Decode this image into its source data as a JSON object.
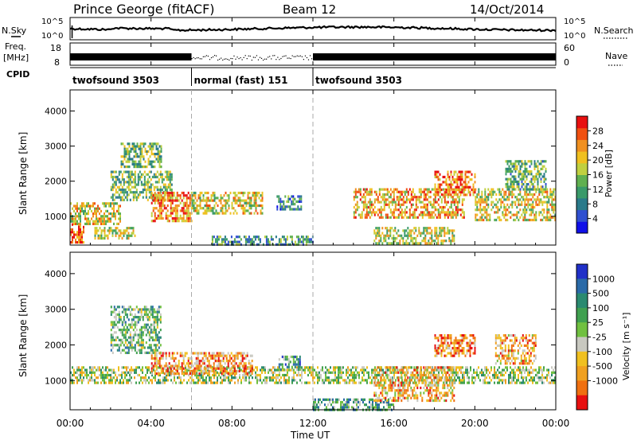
{
  "header": {
    "station": "Prince George (fitACF)",
    "beam": "Beam 12",
    "date": "14/Oct/2014"
  },
  "noise_panel": {
    "left_label": "N.Sky",
    "right_label": "N.Search",
    "left_ticks": [
      "10^5",
      "10^0"
    ],
    "right_ticks": [
      "10^5",
      "10^0"
    ]
  },
  "freq_panel": {
    "left_label_top": "Freq.",
    "left_label_bottom": "[MHz]",
    "right_label": "Nave",
    "left_ticks": [
      "18",
      "8"
    ],
    "right_ticks": [
      "60",
      "0"
    ]
  },
  "cpid": {
    "label": "CPID",
    "segments": [
      {
        "name": "twofsound 3503",
        "start_hour": 0,
        "end_hour": 6
      },
      {
        "name": "normal (fast) 151",
        "start_hour": 6,
        "end_hour": 12
      },
      {
        "name": "twofsound 3503",
        "start_hour": 12,
        "end_hour": 24
      }
    ]
  },
  "x_axis": {
    "label": "Time UT",
    "ticks": [
      "00:00",
      "04:00",
      "08:00",
      "12:00",
      "16:00",
      "20:00",
      "00:00"
    ]
  },
  "chart_data": [
    {
      "type": "heatmap",
      "title": "",
      "xlabel": "",
      "ylabel": "Slant Range [km]",
      "xlim": [
        0,
        24
      ],
      "ylim": [
        180,
        4600
      ],
      "yticks": [
        1000,
        2000,
        3000,
        4000
      ],
      "colorbar": {
        "label": "Power [dB]",
        "tick_values": [
          4,
          8,
          12,
          16,
          20,
          24,
          28
        ],
        "tick_labels": [
          "4",
          "8",
          "12",
          "16",
          "20",
          "24",
          "28"
        ],
        "colors": [
          "#1010e8",
          "#3050d0",
          "#2a7a8a",
          "#3a9a6a",
          "#60b050",
          "#c0d040",
          "#f0c020",
          "#f09020",
          "#f05010",
          "#e81010"
        ]
      },
      "regions": [
        {
          "t0": 0.0,
          "t1": 2.5,
          "r0": 800,
          "r1": 1400,
          "level": 0.6
        },
        {
          "t0": 0.0,
          "t1": 0.7,
          "r0": 250,
          "r1": 800,
          "level": 0.85
        },
        {
          "t0": 1.2,
          "t1": 3.2,
          "r0": 400,
          "r1": 700,
          "level": 0.55
        },
        {
          "t0": 2.0,
          "t1": 5.0,
          "r0": 1500,
          "r1": 2300,
          "level": 0.45
        },
        {
          "t0": 2.5,
          "t1": 4.5,
          "r0": 2400,
          "r1": 3100,
          "level": 0.45
        },
        {
          "t0": 4.0,
          "t1": 6.0,
          "r0": 900,
          "r1": 1700,
          "level": 0.75
        },
        {
          "t0": 6.0,
          "t1": 9.5,
          "r0": 1100,
          "r1": 1700,
          "level": 0.6
        },
        {
          "t0": 10.2,
          "t1": 11.4,
          "r0": 1200,
          "r1": 1600,
          "level": 0.3
        },
        {
          "t0": 7.0,
          "t1": 12.0,
          "r0": 200,
          "r1": 450,
          "level": 0.35
        },
        {
          "t0": 14.0,
          "t1": 19.5,
          "r0": 1000,
          "r1": 1800,
          "level": 0.7
        },
        {
          "t0": 15.0,
          "t1": 19.0,
          "r0": 250,
          "r1": 700,
          "level": 0.55
        },
        {
          "t0": 18.0,
          "t1": 20.0,
          "r0": 1600,
          "r1": 2300,
          "level": 0.8
        },
        {
          "t0": 20.0,
          "t1": 24.0,
          "r0": 900,
          "r1": 1800,
          "level": 0.6
        },
        {
          "t0": 21.5,
          "t1": 23.5,
          "r0": 1800,
          "r1": 2600,
          "level": 0.4
        }
      ]
    },
    {
      "type": "heatmap",
      "title": "",
      "xlabel": "Time UT",
      "ylabel": "Slant Range [km]",
      "xlim": [
        0,
        24
      ],
      "ylim": [
        180,
        4600
      ],
      "yticks": [
        1000,
        2000,
        3000,
        4000
      ],
      "colorbar": {
        "label": "Velocity [m s⁻¹]",
        "tick_labels": [
          "1000",
          "500",
          "100",
          "25",
          "-25",
          "-100",
          "-500",
          "-1000"
        ],
        "colors": [
          "#2030c8",
          "#2a6aa8",
          "#2a8a70",
          "#40a050",
          "#70c040",
          "#c8c8c0",
          "#f0c020",
          "#f0a020",
          "#f07010",
          "#e81010"
        ]
      },
      "regions": [
        {
          "t0": 0.0,
          "t1": 24.0,
          "r0": 900,
          "r1": 1400,
          "level": 0.5
        },
        {
          "t0": 2.0,
          "t1": 4.5,
          "r0": 1800,
          "r1": 3100,
          "level": 0.4
        },
        {
          "t0": 4.0,
          "t1": 9.0,
          "r0": 1200,
          "r1": 1800,
          "level": 0.75
        },
        {
          "t0": 10.3,
          "t1": 11.4,
          "r0": 1300,
          "r1": 1700,
          "level": 0.3
        },
        {
          "t0": 12.0,
          "t1": 16.0,
          "r0": 200,
          "r1": 500,
          "level": 0.35
        },
        {
          "t0": 15.0,
          "t1": 19.0,
          "r0": 400,
          "r1": 1400,
          "level": 0.7
        },
        {
          "t0": 18.0,
          "t1": 20.0,
          "r0": 1700,
          "r1": 2300,
          "level": 0.8
        },
        {
          "t0": 21.0,
          "t1": 23.0,
          "r0": 1500,
          "r1": 2300,
          "level": 0.7
        }
      ]
    }
  ]
}
